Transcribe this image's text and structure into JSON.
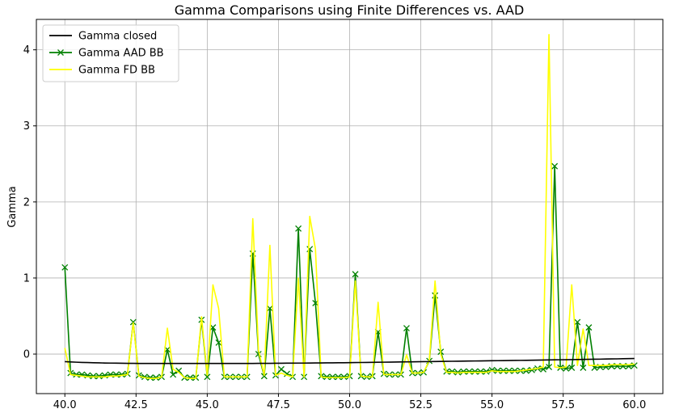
{
  "chart_data": {
    "type": "line",
    "title": "Gamma Comparisons using Finite Differences vs. AAD",
    "xlabel": "",
    "ylabel": "Gamma",
    "xlim": [
      39.0,
      61.0
    ],
    "ylim": [
      -0.52,
      4.4
    ],
    "xticks": [
      40.0,
      42.5,
      45.0,
      47.5,
      50.0,
      52.5,
      55.0,
      57.5,
      60.0
    ],
    "xtick_labels": [
      "40.0",
      "42.5",
      "45.0",
      "47.5",
      "50.0",
      "52.5",
      "55.0",
      "57.5",
      "60.0"
    ],
    "yticks": [
      0,
      1,
      2,
      3,
      4
    ],
    "ytick_labels": [
      "0",
      "1",
      "2",
      "3",
      "4"
    ],
    "grid": true,
    "legend_position": "upper-left",
    "x": [
      40.0,
      40.2,
      40.4,
      40.6,
      40.8,
      41.0,
      41.2,
      41.4,
      41.6,
      41.8,
      42.0,
      42.2,
      42.4,
      42.6,
      42.8,
      43.0,
      43.2,
      43.4,
      43.6,
      43.8,
      44.0,
      44.2,
      44.4,
      44.6,
      44.8,
      45.0,
      45.2,
      45.4,
      45.6,
      45.8,
      46.0,
      46.2,
      46.4,
      46.6,
      46.8,
      47.0,
      47.2,
      47.4,
      47.6,
      47.8,
      48.0,
      48.2,
      48.4,
      48.6,
      48.8,
      49.0,
      49.2,
      49.4,
      49.6,
      49.8,
      50.0,
      50.2,
      50.4,
      50.6,
      50.8,
      51.0,
      51.2,
      51.4,
      51.6,
      51.8,
      52.0,
      52.2,
      52.4,
      52.6,
      52.8,
      53.0,
      53.2,
      53.4,
      53.6,
      53.8,
      54.0,
      54.2,
      54.4,
      54.6,
      54.8,
      55.0,
      55.2,
      55.4,
      55.6,
      55.8,
      56.0,
      56.2,
      56.4,
      56.6,
      56.8,
      57.0,
      57.2,
      57.4,
      57.6,
      57.8,
      58.0,
      58.2,
      58.4,
      58.6,
      58.8,
      59.0,
      59.2,
      59.4,
      59.6,
      59.8,
      60.0
    ],
    "series": [
      {
        "name": "Gamma closed",
        "color": "#000000",
        "marker": "none",
        "values": [
          -0.1,
          -0.104,
          -0.107,
          -0.11,
          -0.112,
          -0.114,
          -0.116,
          -0.118,
          -0.119,
          -0.12,
          -0.121,
          -0.122,
          -0.122,
          -0.123,
          -0.123,
          -0.124,
          -0.124,
          -0.124,
          -0.124,
          -0.124,
          -0.124,
          -0.124,
          -0.124,
          -0.124,
          -0.124,
          -0.124,
          -0.124,
          -0.124,
          -0.124,
          -0.124,
          -0.123,
          -0.123,
          -0.123,
          -0.123,
          -0.122,
          -0.122,
          -0.122,
          -0.121,
          -0.121,
          -0.12,
          -0.12,
          -0.119,
          -0.119,
          -0.118,
          -0.117,
          -0.117,
          -0.116,
          -0.115,
          -0.114,
          -0.114,
          -0.113,
          -0.112,
          -0.111,
          -0.11,
          -0.109,
          -0.108,
          -0.107,
          -0.106,
          -0.105,
          -0.104,
          -0.103,
          -0.102,
          -0.101,
          -0.1,
          -0.099,
          -0.098,
          -0.097,
          -0.096,
          -0.095,
          -0.094,
          -0.093,
          -0.092,
          -0.091,
          -0.09,
          -0.089,
          -0.088,
          -0.087,
          -0.086,
          -0.085,
          -0.084,
          -0.083,
          -0.082,
          -0.081,
          -0.08,
          -0.078,
          -0.077,
          -0.076,
          -0.075,
          -0.074,
          -0.073,
          -0.072,
          -0.07,
          -0.069,
          -0.068,
          -0.067,
          -0.065,
          -0.064,
          -0.063,
          -0.061,
          -0.06,
          -0.058
        ]
      },
      {
        "name": "Gamma AAD BB",
        "color": "#008000",
        "marker": "x",
        "values": [
          1.14,
          -0.25,
          -0.27,
          -0.27,
          -0.28,
          -0.29,
          -0.29,
          -0.28,
          -0.27,
          -0.27,
          -0.27,
          -0.26,
          0.42,
          -0.28,
          -0.3,
          -0.31,
          -0.31,
          -0.3,
          0.06,
          -0.27,
          -0.22,
          -0.31,
          -0.31,
          -0.31,
          0.45,
          -0.3,
          0.35,
          0.15,
          -0.3,
          -0.3,
          -0.3,
          -0.3,
          -0.3,
          1.32,
          0.0,
          -0.29,
          0.6,
          -0.28,
          -0.2,
          -0.26,
          -0.3,
          1.65,
          -0.3,
          1.38,
          0.67,
          -0.29,
          -0.3,
          -0.3,
          -0.3,
          -0.3,
          -0.29,
          1.05,
          -0.29,
          -0.3,
          -0.29,
          0.29,
          -0.26,
          -0.27,
          -0.27,
          -0.27,
          0.34,
          -0.25,
          -0.25,
          -0.24,
          -0.09,
          0.77,
          0.03,
          -0.23,
          -0.23,
          -0.24,
          -0.23,
          -0.23,
          -0.23,
          -0.23,
          -0.23,
          -0.21,
          -0.22,
          -0.22,
          -0.22,
          -0.22,
          -0.22,
          -0.22,
          -0.21,
          -0.19,
          -0.2,
          -0.17,
          2.47,
          -0.18,
          -0.19,
          -0.18,
          0.42,
          -0.18,
          0.35,
          -0.18,
          -0.17,
          -0.17,
          -0.16,
          -0.16,
          -0.16,
          -0.16,
          -0.15
        ]
      },
      {
        "name": "Gamma FD BB",
        "color": "#ffff00",
        "marker": "none",
        "values": [
          0.08,
          -0.27,
          -0.28,
          -0.29,
          -0.3,
          -0.3,
          -0.3,
          -0.3,
          -0.29,
          -0.29,
          -0.28,
          -0.27,
          0.41,
          -0.29,
          -0.31,
          -0.32,
          -0.32,
          -0.3,
          0.34,
          -0.2,
          -0.24,
          -0.31,
          -0.32,
          -0.32,
          0.49,
          -0.28,
          0.91,
          0.6,
          -0.3,
          -0.3,
          -0.3,
          -0.3,
          -0.3,
          1.78,
          0.05,
          -0.28,
          1.43,
          -0.28,
          -0.25,
          -0.28,
          -0.3,
          1.0,
          -0.3,
          1.81,
          1.38,
          -0.3,
          -0.31,
          -0.31,
          -0.31,
          -0.31,
          -0.3,
          0.96,
          -0.29,
          -0.3,
          -0.3,
          0.68,
          -0.27,
          -0.27,
          -0.27,
          -0.27,
          -0.01,
          -0.25,
          -0.25,
          -0.24,
          -0.08,
          0.96,
          0.0,
          -0.24,
          -0.24,
          -0.25,
          -0.24,
          -0.24,
          -0.24,
          -0.24,
          -0.24,
          -0.22,
          -0.23,
          -0.23,
          -0.23,
          -0.23,
          -0.22,
          -0.21,
          -0.2,
          -0.19,
          -0.17,
          4.2,
          -0.17,
          -0.18,
          -0.17,
          0.91,
          -0.15,
          0.33,
          -0.15,
          -0.15,
          -0.15,
          -0.15,
          -0.14,
          -0.14,
          -0.14,
          -0.14,
          -0.13
        ]
      }
    ]
  }
}
